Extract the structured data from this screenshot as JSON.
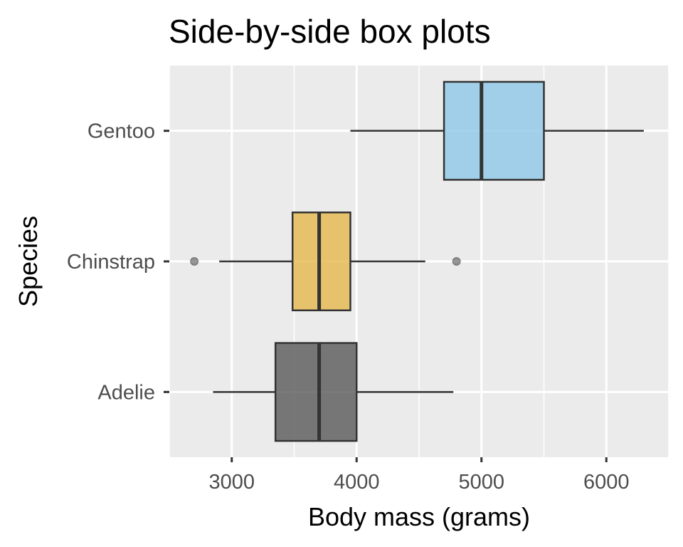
{
  "chart_data": {
    "type": "boxplot",
    "orientation": "horizontal",
    "title": "Side-by-side box plots",
    "xlabel": "Body mass (grams)",
    "ylabel": "Species",
    "xlim": [
      2500,
      6500
    ],
    "x_ticks": [
      3000,
      4000,
      5000,
      6000
    ],
    "categories": [
      "Adelie",
      "Chinstrap",
      "Gentoo"
    ],
    "series": [
      {
        "name": "Adelie",
        "min": 2850,
        "q1": 3350,
        "median": 3700,
        "q3": 4000,
        "max": 4775,
        "outliers": [],
        "color": "#595959"
      },
      {
        "name": "Chinstrap",
        "min": 2900,
        "q1": 3487,
        "median": 3700,
        "q3": 3950,
        "max": 4550,
        "outliers": [
          2700,
          4800
        ],
        "color": "#E6B84C"
      },
      {
        "name": "Gentoo",
        "min": 3950,
        "q1": 4700,
        "median": 5000,
        "q3": 5500,
        "max": 6300,
        "outliers": [],
        "color": "#8EC8E8"
      }
    ],
    "panel_background": "#EBEBEB",
    "grid": true
  }
}
